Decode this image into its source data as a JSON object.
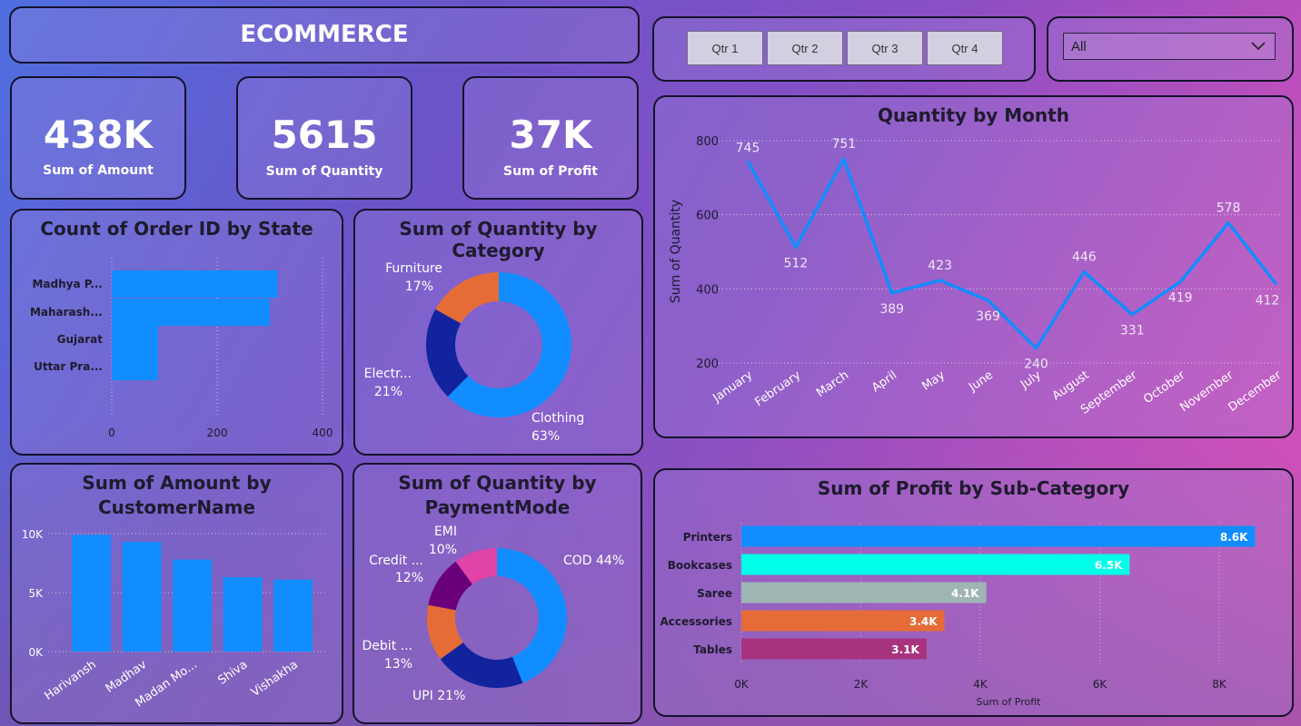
{
  "header": {
    "title": "ECOMMERCE"
  },
  "quarters": [
    "Qtr 1",
    "Qtr 2",
    "Qtr 3",
    "Qtr 4"
  ],
  "filter": {
    "selected": "All"
  },
  "kpis": [
    {
      "value": "438K",
      "label": "Sum of Amount"
    },
    {
      "value": "5615",
      "label": "Sum of Quantity"
    },
    {
      "value": "37K",
      "label": "Sum of Profit"
    }
  ],
  "chart_data": [
    {
      "id": "state",
      "type": "bar",
      "orientation": "horizontal",
      "title": "Count of Order ID by State",
      "categories": [
        "Madhya P...",
        "Maharash...",
        "Gujarat",
        "Uttar Pra..."
      ],
      "values": [
        315,
        300,
        88,
        88
      ],
      "xlim": [
        0,
        400
      ],
      "xticks": [
        "0",
        "200",
        "400"
      ],
      "color": "#118dff"
    },
    {
      "id": "category",
      "type": "pie",
      "donut": true,
      "title": "Sum of Quantity by Category",
      "slices": [
        {
          "label": "Clothing",
          "pct_label": "63%",
          "value": 63,
          "color": "#118dff"
        },
        {
          "label": "Electr...",
          "pct_label": "21%",
          "value": 21,
          "color": "#12239e"
        },
        {
          "label": "Furniture",
          "pct_label": "17%",
          "value": 17,
          "color": "#e66c37"
        }
      ]
    },
    {
      "id": "month",
      "type": "line",
      "title": "Quantity by Month",
      "ylabel": "Sum of Quantity",
      "categories": [
        "January",
        "February",
        "March",
        "April",
        "May",
        "June",
        "July",
        "August",
        "September",
        "October",
        "November",
        "December"
      ],
      "values": [
        745,
        512,
        751,
        389,
        423,
        369,
        240,
        446,
        331,
        419,
        578,
        412
      ],
      "ylim": [
        200,
        800
      ],
      "yticks": [
        "200",
        "400",
        "600",
        "800"
      ],
      "color": "#118dff"
    },
    {
      "id": "customer",
      "type": "bar",
      "title_line1": "Sum of Amount by",
      "title_line2": "CustomerName",
      "categories": [
        "Harivansh",
        "Madhav",
        "Madan Mo...",
        "Shiva",
        "Vishakha"
      ],
      "values": [
        9900,
        9300,
        7800,
        6300,
        6100
      ],
      "ylim": [
        0,
        10000
      ],
      "yticks": [
        "0K",
        "5K",
        "10K"
      ],
      "color": "#118dff"
    },
    {
      "id": "payment",
      "type": "pie",
      "donut": true,
      "title_line1": "Sum of Quantity by",
      "title_line2": "PaymentMode",
      "slices": [
        {
          "label": "COD 44%",
          "value": 44,
          "color": "#118dff"
        },
        {
          "label": "UPI 21%",
          "value": 21,
          "color": "#12239e"
        },
        {
          "label": "Debit ...",
          "pct_label": "13%",
          "value": 13,
          "color": "#e66c37"
        },
        {
          "label": "Credit ...",
          "pct_label": "12%",
          "value": 12,
          "color": "#6b007b"
        },
        {
          "label": "EMI",
          "pct_label": "10%",
          "value": 10,
          "color": "#e044a7"
        }
      ]
    },
    {
      "id": "subcat",
      "type": "bar",
      "orientation": "horizontal",
      "title": "Sum of Profit by Sub-Category",
      "xlabel": "Sum of Profit",
      "categories": [
        "Printers",
        "Bookcases",
        "Saree",
        "Accessories",
        "Tables"
      ],
      "values": [
        8600,
        6500,
        4100,
        3400,
        3100
      ],
      "data_labels": [
        "8.6K",
        "6.5K",
        "4.1K",
        "3.4K",
        "3.1K"
      ],
      "colors": [
        "#118dff",
        "#00ffe8",
        "#9fb5b4",
        "#e66c37",
        "#a7337f"
      ],
      "xlim": [
        0,
        9000
      ],
      "xticks": [
        "0K",
        "2K",
        "4K",
        "6K",
        "8K"
      ],
      "xtick_values": [
        0,
        2000,
        4000,
        6000,
        8000
      ]
    }
  ]
}
